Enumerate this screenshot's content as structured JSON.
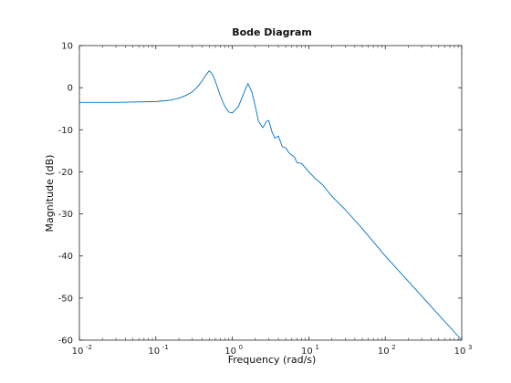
{
  "chart_data": {
    "type": "line",
    "title": "Bode Diagram",
    "xlabel": "Frequency  (rad/s)",
    "ylabel": "Magnitude (dB)",
    "xscale": "log",
    "xlim": [
      0.01,
      1000
    ],
    "ylim": [
      -60,
      10
    ],
    "grid": false,
    "x_ticks": [
      {
        "base": "10",
        "exp": "-2",
        "value": 0.01
      },
      {
        "base": "10",
        "exp": "-1",
        "value": 0.1
      },
      {
        "base": "10",
        "exp": "0",
        "value": 1
      },
      {
        "base": "10",
        "exp": "1",
        "value": 10
      },
      {
        "base": "10",
        "exp": "2",
        "value": 100
      },
      {
        "base": "10",
        "exp": "3",
        "value": 1000
      }
    ],
    "y_ticks": [
      "10",
      "0",
      "-10",
      "-20",
      "-30",
      "-40",
      "-50",
      "-60"
    ],
    "series": [
      {
        "color": "#0072bd",
        "x": [
          0.01,
          0.03,
          0.1,
          0.15,
          0.2,
          0.25,
          0.3,
          0.35,
          0.4,
          0.45,
          0.5,
          0.55,
          0.6,
          0.7,
          0.8,
          0.9,
          1.0,
          1.2,
          1.4,
          1.6,
          1.8,
          2.0,
          2.2,
          2.5,
          2.8,
          3.0,
          3.3,
          3.6,
          4.0,
          4.5,
          5.0,
          5.5,
          6.0,
          6.5,
          7.0,
          8.0,
          9.0,
          10,
          12,
          15,
          20,
          30,
          50,
          100,
          200,
          500,
          1000
        ],
        "y": [
          -3.5,
          -3.5,
          -3.3,
          -3.0,
          -2.5,
          -1.8,
          -1.0,
          0.2,
          1.5,
          3.0,
          4.0,
          3.2,
          1.5,
          -2.0,
          -4.5,
          -5.8,
          -6.0,
          -4.5,
          -1.5,
          1.0,
          -1.0,
          -4.5,
          -8.0,
          -9.5,
          -8.0,
          -7.8,
          -10.5,
          -12.0,
          -11.5,
          -14.0,
          -14.3,
          -15.5,
          -16.0,
          -16.5,
          -17.8,
          -18.0,
          -19.0,
          -20.0,
          -21.5,
          -23.0,
          -25.8,
          -29.0,
          -33.5,
          -40.0,
          -46.0,
          -54.0,
          -60.0
        ]
      }
    ]
  }
}
